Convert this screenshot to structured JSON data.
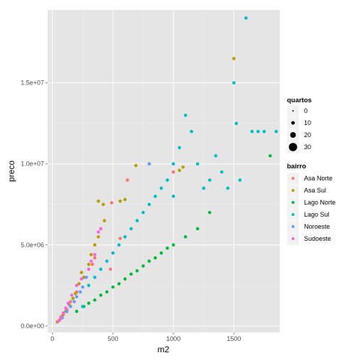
{
  "chart_data": {
    "type": "scatter",
    "xlabel": "m2",
    "ylabel": "preco",
    "xlim": [
      -40,
      1880
    ],
    "ylim": [
      -400000,
      19500000
    ],
    "xticks": [
      0,
      500,
      1000,
      1500
    ],
    "xtick_labels": [
      "0",
      "500",
      "1000",
      "1500"
    ],
    "yticks": [
      0,
      5000000,
      10000000,
      15000000
    ],
    "ytick_labels": [
      "0.0e+00",
      "5.0e+06",
      "1.0e+07",
      "1.5e+07"
    ],
    "grid": true,
    "legend_position": "right",
    "size_legend": {
      "title": "quartos",
      "labels": [
        "0",
        "10",
        "20",
        "30"
      ],
      "values": [
        0,
        10,
        20,
        30
      ]
    },
    "color_legend": {
      "title": "bairro",
      "labels": [
        "Asa Norte",
        "Asa Sul",
        "Lago Norte",
        "Lago Sul",
        "Noroeste",
        "Sudoeste"
      ],
      "colors": [
        "#F8766D",
        "#B79F00",
        "#00BA38",
        "#00BFC4",
        "#619CFF",
        "#F564E3"
      ]
    },
    "series": [
      {
        "name": "Asa Norte",
        "points": [
          [
            60,
            380000
          ],
          [
            90,
            700000
          ],
          [
            120,
            1000000
          ],
          [
            150,
            1500000
          ],
          [
            200,
            2100000
          ],
          [
            260,
            3000000
          ],
          [
            330,
            3800000
          ],
          [
            350,
            4200000
          ],
          [
            480,
            3500000
          ],
          [
            490,
            7600000
          ],
          [
            500,
            4500000
          ],
          [
            560,
            5400000
          ],
          [
            620,
            9000000
          ],
          [
            800,
            10000000
          ],
          [
            1000,
            9500000
          ]
        ]
      },
      {
        "name": "Asa Sul",
        "points": [
          [
            40,
            250000
          ],
          [
            80,
            600000
          ],
          [
            110,
            900000
          ],
          [
            140,
            1300000
          ],
          [
            170,
            1700000
          ],
          [
            190,
            2000000
          ],
          [
            220,
            2600000
          ],
          [
            240,
            3300000
          ],
          [
            260,
            3000000
          ],
          [
            300,
            3800000
          ],
          [
            320,
            4400000
          ],
          [
            350,
            5000000
          ],
          [
            380,
            5500000
          ],
          [
            400,
            6000000
          ],
          [
            430,
            6500000
          ],
          [
            380,
            7700000
          ],
          [
            420,
            7500000
          ],
          [
            560,
            7700000
          ],
          [
            600,
            7800000
          ],
          [
            690,
            9900000
          ],
          [
            1050,
            9600000
          ],
          [
            1080,
            9800000
          ],
          [
            1500,
            16500000
          ]
        ]
      },
      {
        "name": "Lago Norte",
        "points": [
          [
            200,
            900000
          ],
          [
            260,
            1200000
          ],
          [
            300,
            1400000
          ],
          [
            350,
            1600000
          ],
          [
            400,
            1900000
          ],
          [
            450,
            2100000
          ],
          [
            500,
            2400000
          ],
          [
            550,
            2600000
          ],
          [
            600,
            2900000
          ],
          [
            650,
            3200000
          ],
          [
            700,
            3400000
          ],
          [
            750,
            3700000
          ],
          [
            800,
            4000000
          ],
          [
            850,
            4200000
          ],
          [
            900,
            4500000
          ],
          [
            950,
            4800000
          ],
          [
            1000,
            5000000
          ],
          [
            1100,
            5500000
          ],
          [
            1200,
            6000000
          ],
          [
            1300,
            7000000
          ],
          [
            1800,
            10500000
          ]
        ]
      },
      {
        "name": "Lago Sul",
        "points": [
          [
            250,
            1200000
          ],
          [
            300,
            2500000
          ],
          [
            350,
            3000000
          ],
          [
            400,
            3500000
          ],
          [
            450,
            4000000
          ],
          [
            500,
            4500000
          ],
          [
            550,
            5000000
          ],
          [
            600,
            5500000
          ],
          [
            650,
            6000000
          ],
          [
            700,
            6500000
          ],
          [
            750,
            7000000
          ],
          [
            800,
            7500000
          ],
          [
            850,
            8000000
          ],
          [
            900,
            8500000
          ],
          [
            950,
            9000000
          ],
          [
            1000,
            8000000
          ],
          [
            1000,
            10000000
          ],
          [
            1050,
            11000000
          ],
          [
            1100,
            13000000
          ],
          [
            1150,
            12000000
          ],
          [
            1200,
            10000000
          ],
          [
            1250,
            8500000
          ],
          [
            1300,
            9000000
          ],
          [
            1350,
            10500000
          ],
          [
            1400,
            9500000
          ],
          [
            1450,
            8500000
          ],
          [
            1500,
            15000000
          ],
          [
            1520,
            12500000
          ],
          [
            1550,
            9000000
          ],
          [
            1600,
            19000000
          ],
          [
            1650,
            12000000
          ],
          [
            1700,
            12000000
          ],
          [
            1750,
            12000000
          ],
          [
            1850,
            12000000
          ]
        ]
      },
      {
        "name": "Noroeste",
        "points": [
          [
            80,
            500000
          ],
          [
            120,
            900000
          ],
          [
            150,
            1200000
          ],
          [
            180,
            1500000
          ],
          [
            200,
            1800000
          ],
          [
            230,
            2100000
          ],
          [
            250,
            2400000
          ],
          [
            280,
            3000000
          ],
          [
            800,
            10000000
          ]
        ]
      },
      {
        "name": "Sudoeste",
        "points": [
          [
            50,
            300000
          ],
          [
            70,
            550000
          ],
          [
            90,
            800000
          ],
          [
            110,
            1100000
          ],
          [
            130,
            1400000
          ],
          [
            160,
            1900000
          ],
          [
            200,
            2500000
          ],
          [
            240,
            2900000
          ],
          [
            300,
            3500000
          ],
          [
            320,
            4000000
          ],
          [
            350,
            4400000
          ],
          [
            380,
            5800000
          ],
          [
            400,
            6000000
          ]
        ]
      }
    ]
  }
}
